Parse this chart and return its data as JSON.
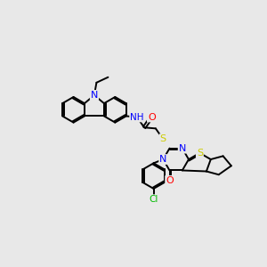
{
  "background_color": "#e8e8e8",
  "bond_color": "#000000",
  "bond_width": 1.4,
  "atom_colors": {
    "N": "#0000ff",
    "O": "#ff0000",
    "S": "#cccc00",
    "Cl": "#00bb00",
    "H": "#777777"
  },
  "figsize": [
    3.0,
    3.0
  ],
  "dpi": 100,
  "xlim": [
    0,
    10
  ],
  "ylim": [
    0,
    10
  ],
  "bl": 0.62
}
